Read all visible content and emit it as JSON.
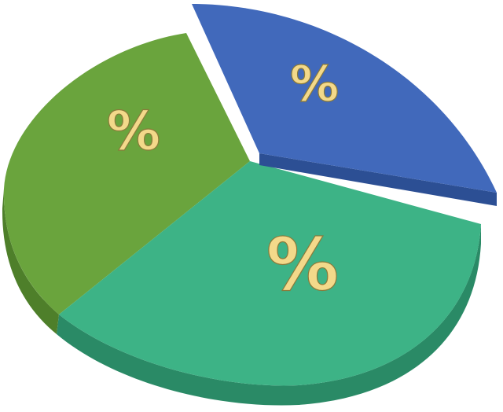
{
  "chart_data": {
    "type": "pie",
    "style": "3d-exploded",
    "slices": [
      {
        "label": "%",
        "color": "#6aa43d",
        "exploded": false
      },
      {
        "label": "%",
        "color": "#3db386",
        "exploded": false
      },
      {
        "label": "%",
        "color": "#4169bb",
        "exploded": true
      }
    ]
  }
}
